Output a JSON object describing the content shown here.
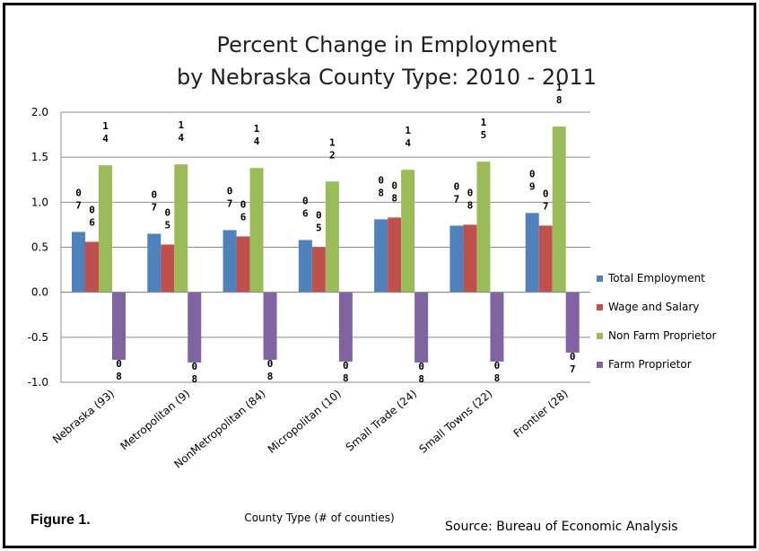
{
  "figure_label": "Figure 1.",
  "source": "Source: Bureau of Economic Analysis",
  "chart_data": {
    "type": "bar",
    "title": [
      "Percent Change in Employment",
      "by Nebraska County Type: 2010 - 2011"
    ],
    "xlabel": "County Type (# of counties)",
    "ylabel": "",
    "ylim": [
      -1.0,
      2.0
    ],
    "yticks": [
      "2.0",
      "1.5",
      "1.0",
      "0.5",
      "0.0",
      "-0.5",
      "-1.0"
    ],
    "ytick_values": [
      2.0,
      1.5,
      1.0,
      0.5,
      0.0,
      -0.5,
      -1.0
    ],
    "grid": true,
    "legend_position": "right",
    "categories": [
      "Nebraska (93)",
      "Metropolitan (9)",
      "NonMetropolitan (84)",
      "Micropolitan (10)",
      "Small Trade (24)",
      "Small Towns (22)",
      "Frontier (28)"
    ],
    "series": [
      {
        "name": "Total Employment",
        "color": "#4f81bd",
        "values": [
          0.67,
          0.65,
          0.69,
          0.58,
          0.81,
          0.74,
          0.88
        ],
        "labels": [
          "0\n7",
          "0\n7",
          "0\n7",
          "0\n6",
          "0\n8",
          "0\n7",
          "0\n9"
        ]
      },
      {
        "name": "Wage and Salary",
        "color": "#c0504d",
        "values": [
          0.56,
          0.53,
          0.62,
          0.5,
          0.83,
          0.75,
          0.74
        ],
        "labels": [
          "0\n6",
          "0\n5",
          "0\n6",
          "0\n5",
          "0\n8",
          "0\n8",
          "0\n7"
        ]
      },
      {
        "name": "Non Farm Proprietor",
        "color": "#9bbb59",
        "values": [
          1.41,
          1.42,
          1.38,
          1.23,
          1.36,
          1.45,
          1.84
        ],
        "labels": [
          "1\n4",
          "1\n4",
          "1\n4",
          "1\n2",
          "1\n4",
          "1\n5",
          "1\n8"
        ]
      },
      {
        "name": "Farm Proprietor",
        "color": "#8064a2",
        "values": [
          -0.75,
          -0.78,
          -0.75,
          -0.77,
          -0.78,
          -0.77,
          -0.67
        ],
        "labels": [
          "0\n8",
          "0\n8",
          "0\n8",
          "0\n8",
          "0\n8",
          "0\n8",
          "0\n7"
        ]
      }
    ]
  }
}
